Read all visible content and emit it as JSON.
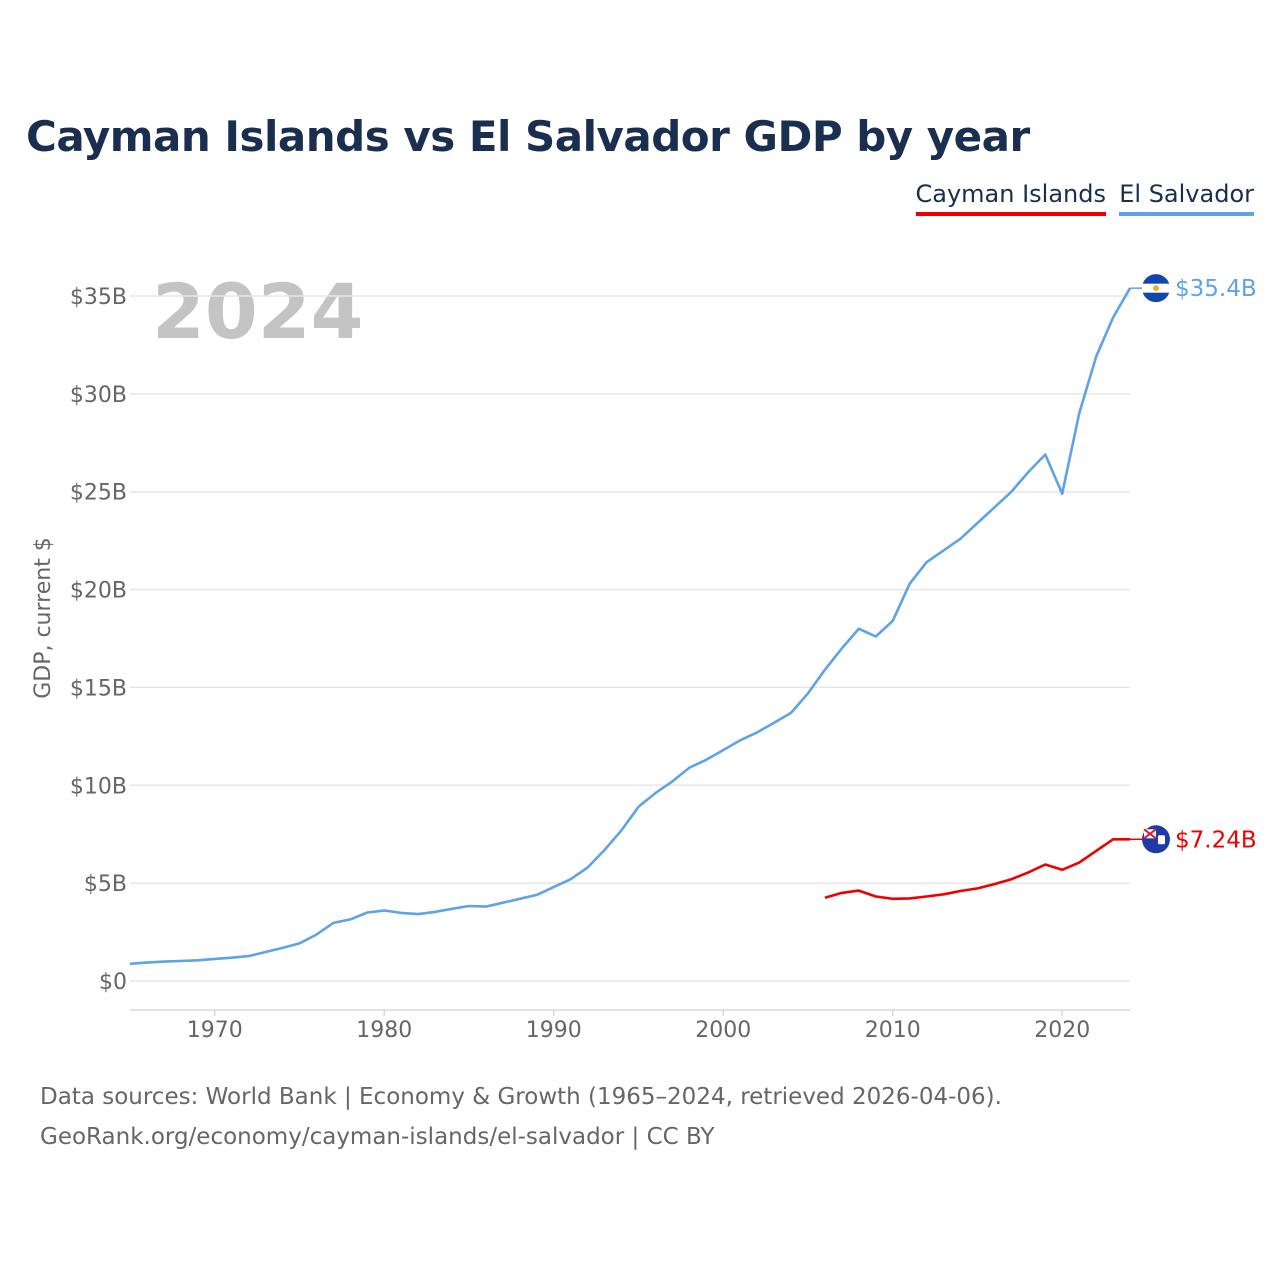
{
  "chart_data": {
    "type": "line",
    "title": "Cayman Islands vs El Salvador GDP by year",
    "year_watermark": "2024",
    "ylabel": "GDP, current $",
    "xlabel": "",
    "xlim": [
      1965,
      2024
    ],
    "ylim": [
      0,
      35
    ],
    "y_unit": "billions USD",
    "x_ticks": [
      "1970",
      "1980",
      "1990",
      "2000",
      "2010",
      "2020"
    ],
    "y_ticks": [
      "$0",
      "$5B",
      "$10B",
      "$15B",
      "$20B",
      "$25B",
      "$30B",
      "$35B"
    ],
    "legend": [
      "Cayman Islands",
      "El Salvador"
    ],
    "legend_position": "top-right",
    "series": [
      {
        "name": "Cayman Islands",
        "color": "#ee0000",
        "end_label": "$7.24B",
        "flag_icon": "cayman-islands-flag-icon",
        "x": [
          2006,
          2007,
          2008,
          2009,
          2010,
          2011,
          2012,
          2013,
          2014,
          2015,
          2016,
          2017,
          2018,
          2019,
          2020,
          2021,
          2022,
          2023,
          2024
        ],
        "values": [
          4.25,
          4.5,
          4.62,
          4.32,
          4.2,
          4.22,
          4.32,
          4.43,
          4.6,
          4.73,
          4.95,
          5.2,
          5.55,
          5.95,
          5.68,
          6.05,
          6.65,
          7.24,
          7.24
        ]
      },
      {
        "name": "El Salvador",
        "color": "#5ea3e6",
        "end_label": "$35.4B",
        "flag_icon": "el-salvador-flag-icon",
        "x": [
          1965,
          1966,
          1967,
          1968,
          1969,
          1970,
          1971,
          1972,
          1973,
          1974,
          1975,
          1976,
          1977,
          1978,
          1979,
          1980,
          1981,
          1982,
          1983,
          1984,
          1985,
          1986,
          1987,
          1988,
          1989,
          1990,
          1991,
          1992,
          1993,
          1994,
          1995,
          1996,
          1997,
          1998,
          1999,
          2000,
          2001,
          2002,
          2003,
          2004,
          2005,
          2006,
          2007,
          2008,
          2009,
          2010,
          2011,
          2012,
          2013,
          2014,
          2015,
          2016,
          2017,
          2018,
          2019,
          2020,
          2021,
          2022,
          2023,
          2024
        ],
        "values": [
          0.88,
          0.94,
          0.99,
          1.02,
          1.06,
          1.13,
          1.19,
          1.27,
          1.48,
          1.69,
          1.92,
          2.37,
          2.97,
          3.15,
          3.5,
          3.6,
          3.48,
          3.42,
          3.53,
          3.69,
          3.83,
          3.8,
          4.0,
          4.2,
          4.4,
          4.8,
          5.2,
          5.8,
          6.7,
          7.7,
          8.9,
          9.6,
          10.2,
          10.9,
          11.3,
          11.8,
          12.3,
          12.7,
          13.2,
          13.7,
          14.7,
          15.9,
          17.0,
          18.0,
          17.6,
          18.4,
          20.3,
          21.4,
          22.0,
          22.6,
          23.4,
          24.2,
          25.0,
          26.0,
          26.9,
          24.9,
          29.0,
          31.9,
          33.9,
          35.4
        ]
      }
    ]
  },
  "footer": {
    "sources": "Data sources: World Bank | Economy & Growth (1965–2024, retrieved 2026-04-06).",
    "url": "GeoRank.org/economy/cayman-islands/el-salvador | CC BY"
  }
}
